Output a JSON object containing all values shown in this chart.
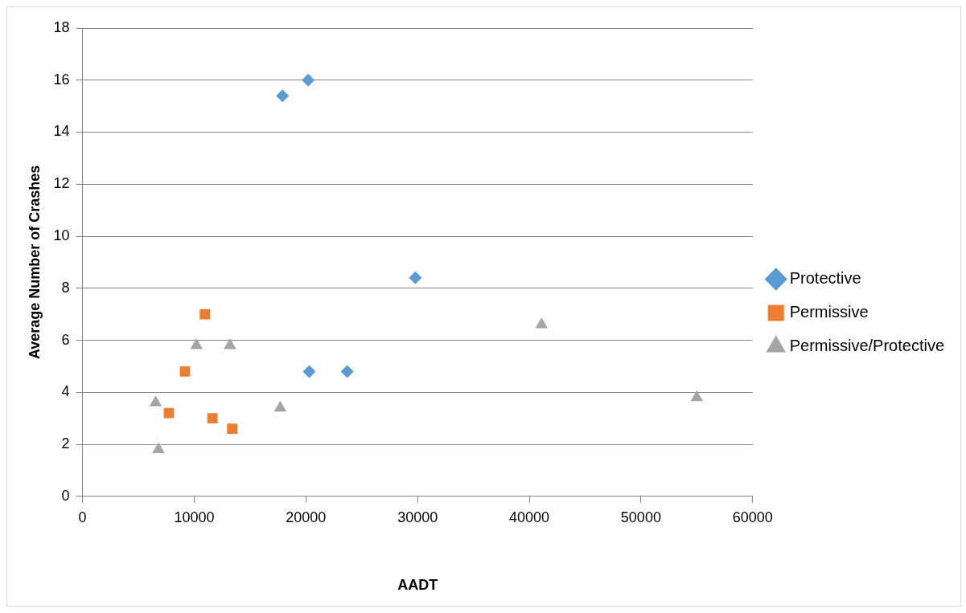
{
  "chart_data": {
    "type": "scatter",
    "xlabel": "AADT",
    "ylabel": "Average Number of Crashes",
    "xlim": [
      0,
      60000
    ],
    "xticks": [
      0,
      10000,
      20000,
      30000,
      40000,
      50000,
      60000
    ],
    "ylim": [
      0,
      18
    ],
    "yticks": [
      0,
      2,
      4,
      6,
      8,
      10,
      12,
      14,
      16,
      18
    ],
    "grid": "y",
    "legend": "right",
    "series": [
      {
        "name": "Protective",
        "color": "#5b9bd5",
        "marker": "diamond",
        "x": [
          17900,
          20200,
          29800,
          20300,
          23700
        ],
        "values": [
          15.4,
          16.0,
          8.4,
          4.8,
          4.8
        ]
      },
      {
        "name": "Permissive",
        "color": "#ed7d31",
        "marker": "square",
        "x": [
          10950,
          9170,
          7730,
          11630,
          13400
        ],
        "values": [
          7.0,
          4.8,
          3.2,
          3.0,
          2.6
        ]
      },
      {
        "name": "Permissive/Protective",
        "color": "#a5a5a5",
        "marker": "triangle",
        "x": [
          6540,
          6800,
          10200,
          13200,
          17700,
          41100,
          55000
        ],
        "values": [
          3.6,
          1.8,
          5.8,
          5.8,
          3.4,
          6.6,
          3.8
        ]
      }
    ]
  }
}
